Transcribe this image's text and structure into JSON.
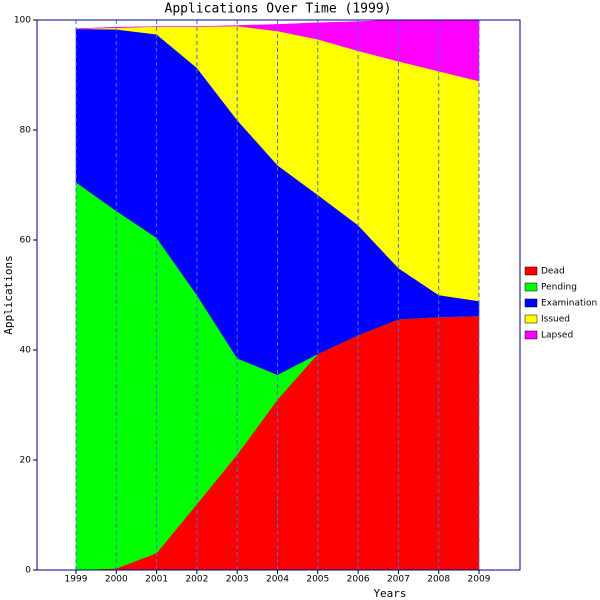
{
  "chart_data": {
    "type": "stacked-area",
    "title": "Applications Over Time (1999)",
    "x_label": "Years",
    "y_label": "Applications",
    "categories": [
      "1999",
      "2000",
      "2001",
      "2002",
      "2003",
      "2004",
      "2005",
      "2006",
      "2007",
      "2008",
      "2009"
    ],
    "series": [
      {
        "name": "Dead",
        "color": "#ff0000",
        "values": [
          0,
          0.3,
          3.1,
          12,
          21,
          31,
          39.3,
          42.7,
          45.6,
          46,
          46.2
        ]
      },
      {
        "name": "Pending",
        "color": "#00ff00",
        "values": [
          70.5,
          65,
          57.3,
          38,
          17.5,
          4.5,
          0,
          0,
          0,
          0,
          0
        ]
      },
      {
        "name": "Examination",
        "color": "#0000ff",
        "values": [
          27.9,
          33,
          37,
          41.3,
          43.3,
          38.1,
          28.9,
          20,
          9.3,
          4,
          2.7
        ]
      },
      {
        "name": "Issued",
        "color": "#ffff00",
        "values": [
          0,
          0.3,
          1.4,
          7.5,
          17.1,
          24.4,
          28.3,
          31.7,
          37.6,
          40.7,
          40
        ]
      },
      {
        "name": "Lapsed",
        "color": "#ff00ff",
        "values": [
          0,
          0.1,
          0,
          0,
          0.1,
          1.2,
          3,
          5.3,
          7.5,
          9.3,
          11.1
        ]
      }
    ],
    "ylim": [
      0,
      100
    ],
    "yticks": [
      0,
      20,
      40,
      60,
      80,
      100
    ],
    "grid": true,
    "legend": "right"
  }
}
